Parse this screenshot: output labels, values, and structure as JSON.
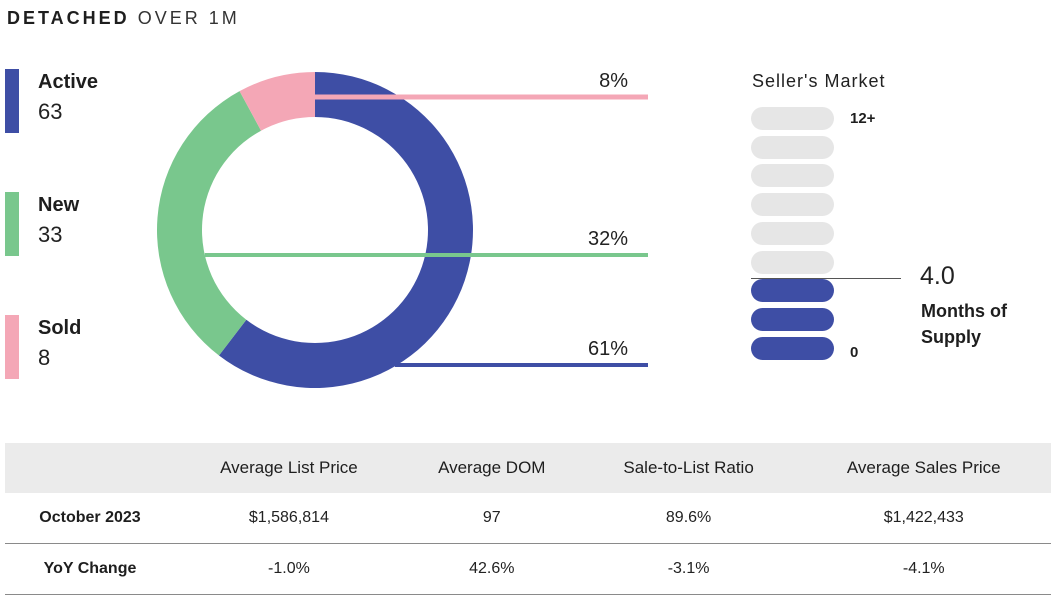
{
  "title": {
    "bold": "DETACHED",
    "rest": "OVER 1M"
  },
  "legend": [
    {
      "label": "Active",
      "value": "63",
      "color": "#3e4ea5"
    },
    {
      "label": "New",
      "value": "33",
      "color": "#79c78d"
    },
    {
      "label": "Sold",
      "value": "8",
      "color": "#f4a7b6"
    }
  ],
  "chart_data": {
    "type": "pie",
    "donut": true,
    "slices": [
      {
        "name": "Active",
        "value": 61,
        "label": "61%",
        "color": "#3e4ea5"
      },
      {
        "name": "New",
        "value": 32,
        "label": "32%",
        "color": "#79c78d"
      },
      {
        "name": "Sold",
        "value": 8,
        "label": "8%",
        "color": "#f4a7b6"
      }
    ]
  },
  "market": {
    "title": "Seller's Market",
    "top_label": "12+",
    "bottom_label": "0",
    "value": "4.0",
    "caption_line1": "Months of",
    "caption_line2": "Supply",
    "total_pills": 9,
    "filled_pills": 3,
    "colors": {
      "filled": "#3e4ea5",
      "empty": "#e6e6e6"
    }
  },
  "table": {
    "headers": [
      "",
      "Average List Price",
      "Average DOM",
      "Sale-to-List Ratio",
      "Average Sales Price"
    ],
    "rows": [
      {
        "label": "October 2023",
        "cells": [
          "$1,586,814",
          "97",
          "89.6%",
          "$1,422,433"
        ]
      },
      {
        "label": "YoY Change",
        "cells": [
          "-1.0%",
          "42.6%",
          "-3.1%",
          "-4.1%"
        ]
      }
    ]
  }
}
